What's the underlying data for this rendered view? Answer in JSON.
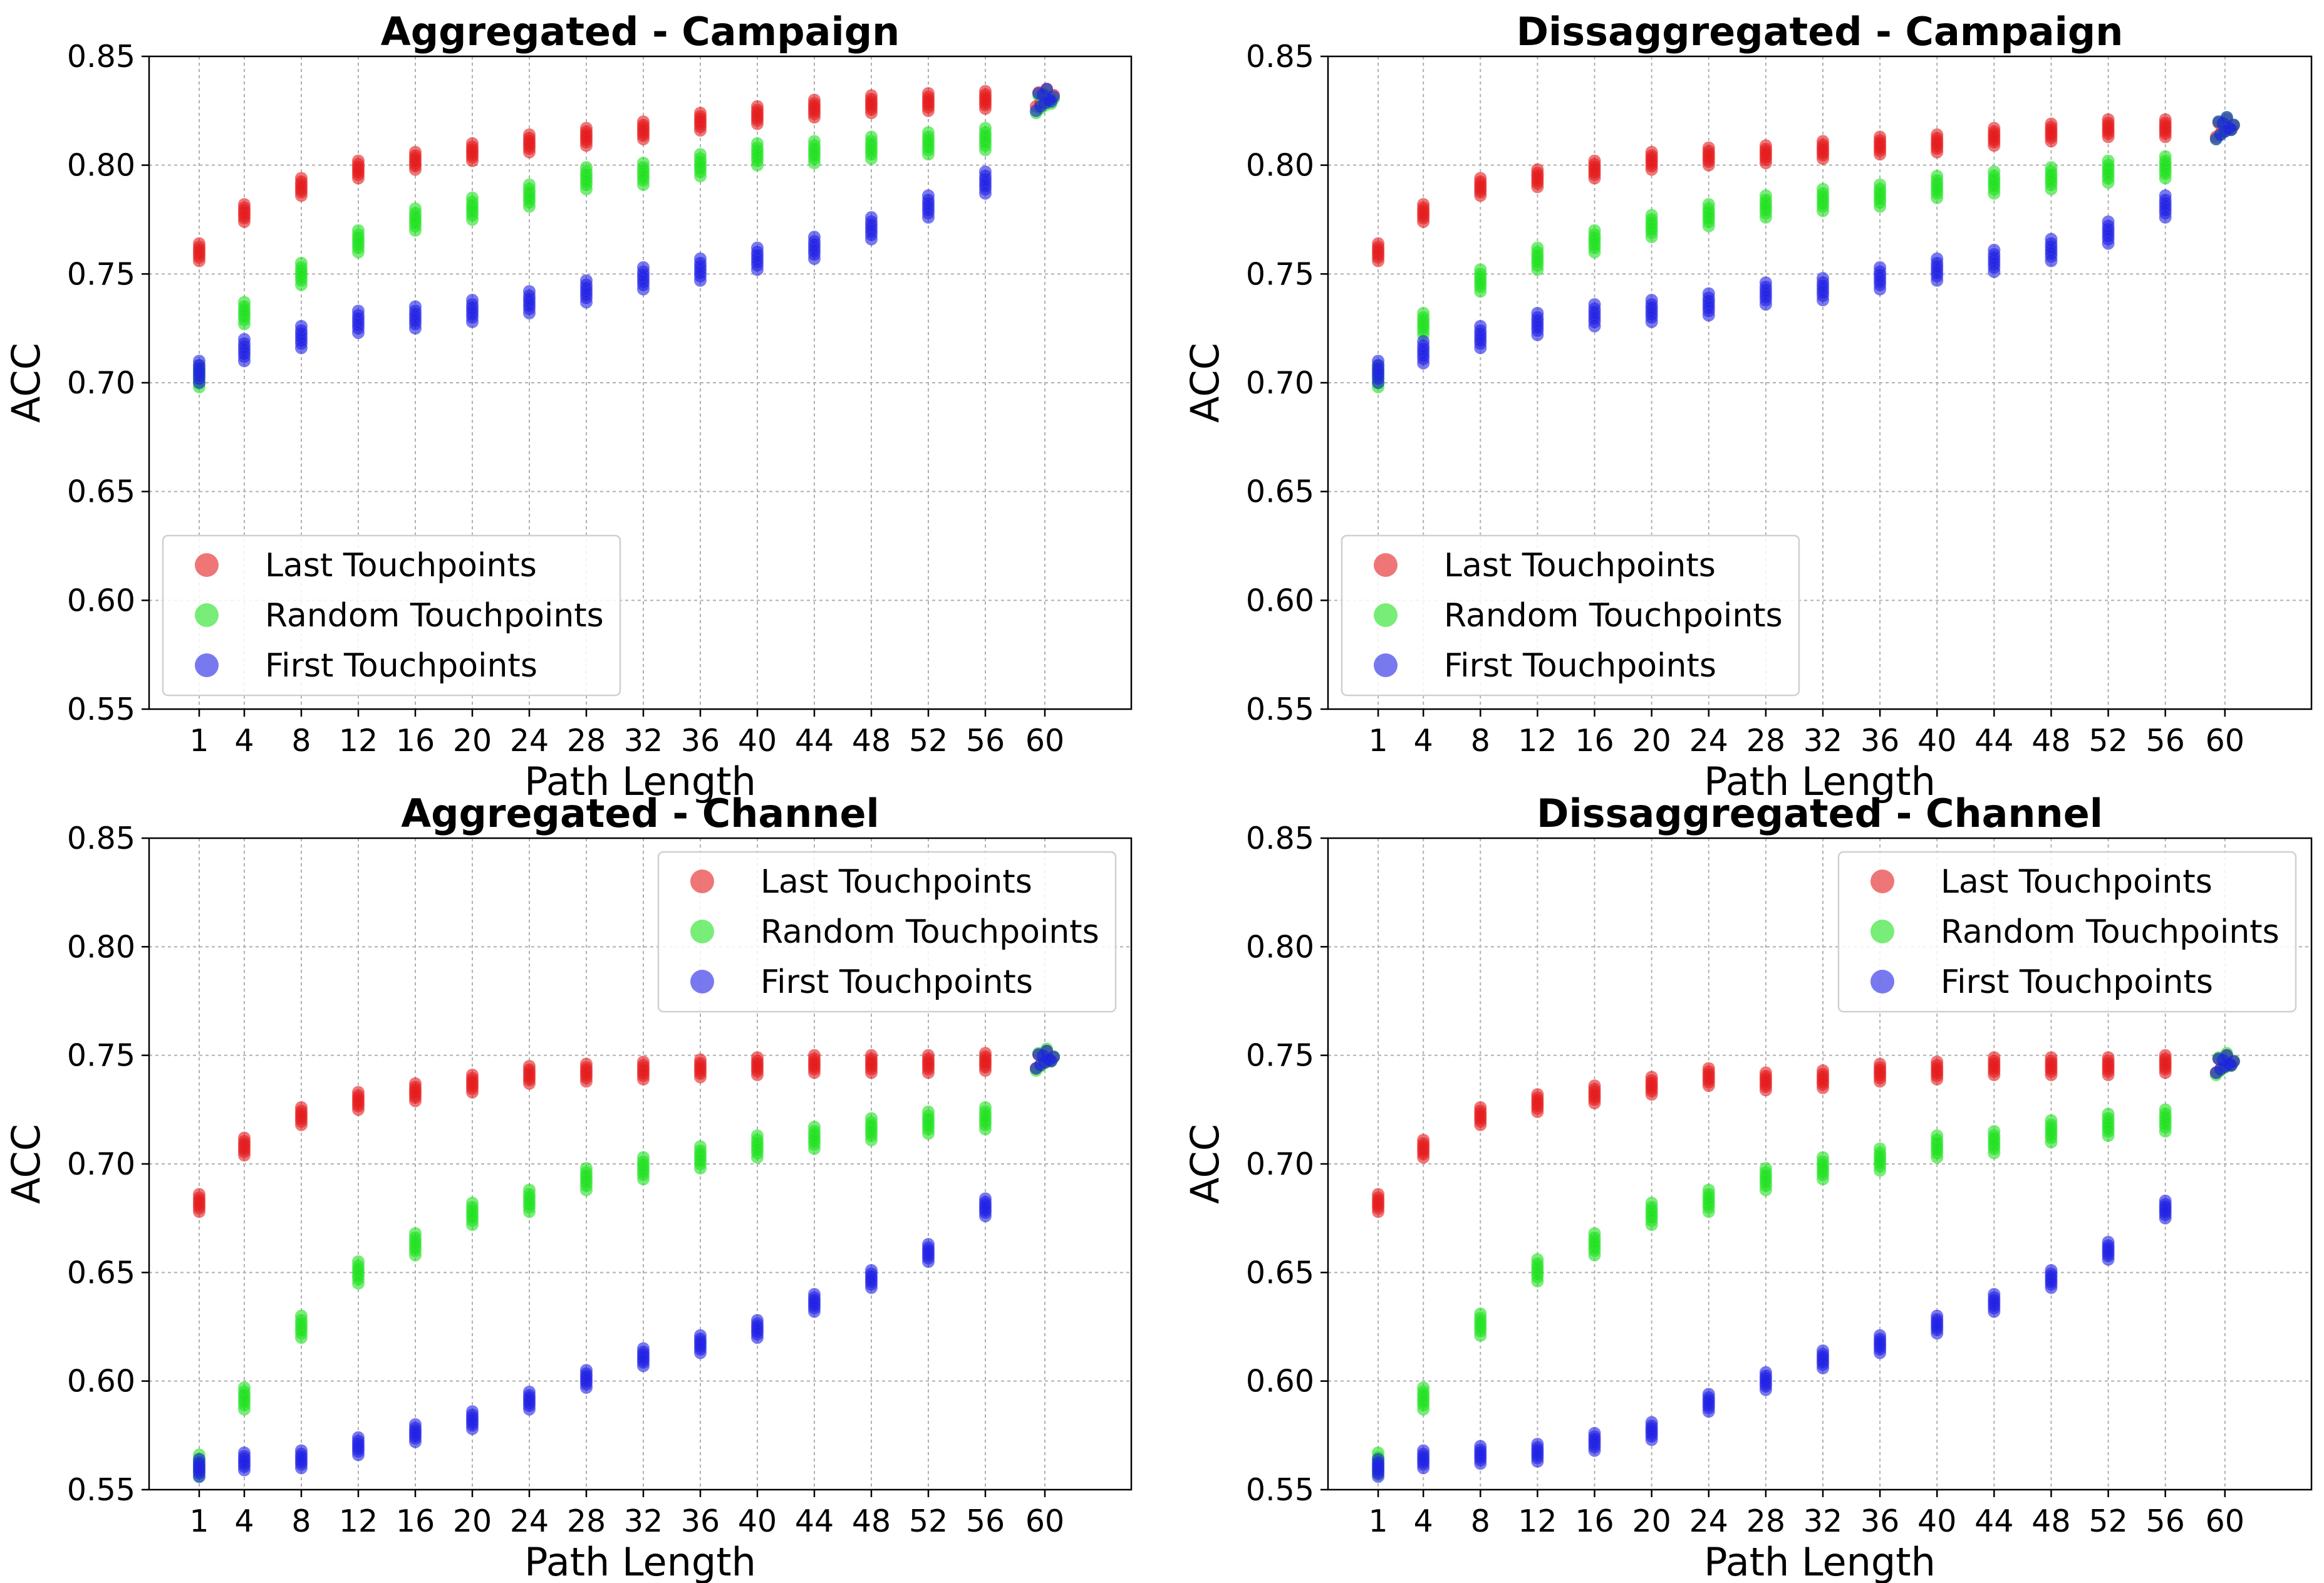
{
  "chart_data": [
    {
      "type": "scatter",
      "title": "Aggregated - Campaign",
      "xlabel": "Path Length",
      "ylabel": "ACC",
      "ylim": [
        0.55,
        0.85
      ],
      "yticks": [
        "0.55",
        "0.60",
        "0.65",
        "0.70",
        "0.75",
        "0.80",
        "0.85"
      ],
      "x": [
        1,
        4,
        8,
        12,
        16,
        20,
        24,
        28,
        32,
        36,
        40,
        44,
        48,
        52,
        56,
        60
      ],
      "grid": true,
      "legend_position": "lower-left",
      "series": [
        {
          "name": "Last Touchpoints",
          "color": "#e41a1c",
          "values": [
            0.76,
            0.778,
            0.79,
            0.798,
            0.802,
            0.806,
            0.81,
            0.813,
            0.816,
            0.82,
            0.823,
            0.826,
            0.828,
            0.829,
            0.83,
            0.831
          ],
          "spread": 0.004
        },
        {
          "name": "Random Touchpoints",
          "color": "#1ee11e",
          "values": [
            0.703,
            0.732,
            0.75,
            0.765,
            0.775,
            0.78,
            0.786,
            0.794,
            0.796,
            0.8,
            0.805,
            0.806,
            0.808,
            0.81,
            0.812,
            0.829
          ],
          "spread": 0.005
        },
        {
          "name": "First Touchpoints",
          "color": "#1f1fe5",
          "values": [
            0.705,
            0.715,
            0.721,
            0.728,
            0.73,
            0.733,
            0.737,
            0.742,
            0.748,
            0.752,
            0.757,
            0.762,
            0.771,
            0.781,
            0.792,
            0.83
          ],
          "spread": 0.005
        }
      ]
    },
    {
      "type": "scatter",
      "title": "Dissaggregated - Campaign",
      "xlabel": "Path Length",
      "ylabel": "ACC",
      "ylim": [
        0.55,
        0.85
      ],
      "yticks": [
        "0.55",
        "0.60",
        "0.65",
        "0.70",
        "0.75",
        "0.80",
        "0.85"
      ],
      "x": [
        1,
        4,
        8,
        12,
        16,
        20,
        24,
        28,
        32,
        36,
        40,
        44,
        48,
        52,
        56,
        60
      ],
      "grid": true,
      "legend_position": "lower-left",
      "series": [
        {
          "name": "Last Touchpoints",
          "color": "#e41a1c",
          "values": [
            0.76,
            0.778,
            0.79,
            0.794,
            0.798,
            0.802,
            0.804,
            0.805,
            0.807,
            0.809,
            0.81,
            0.813,
            0.815,
            0.817,
            0.817,
            0.817
          ],
          "spread": 0.004
        },
        {
          "name": "Random Touchpoints",
          "color": "#1ee11e",
          "values": [
            0.703,
            0.727,
            0.747,
            0.757,
            0.765,
            0.772,
            0.777,
            0.781,
            0.784,
            0.786,
            0.79,
            0.792,
            0.794,
            0.797,
            0.799,
            0.817
          ],
          "spread": 0.005
        },
        {
          "name": "First Touchpoints",
          "color": "#1f1fe5",
          "values": [
            0.705,
            0.714,
            0.721,
            0.727,
            0.731,
            0.733,
            0.736,
            0.741,
            0.743,
            0.748,
            0.752,
            0.756,
            0.761,
            0.769,
            0.781,
            0.817
          ],
          "spread": 0.005
        }
      ]
    },
    {
      "type": "scatter",
      "title": "Aggregated - Channel",
      "xlabel": "Path Length",
      "ylabel": "ACC",
      "ylim": [
        0.55,
        0.85
      ],
      "yticks": [
        "0.55",
        "0.60",
        "0.65",
        "0.70",
        "0.75",
        "0.80",
        "0.85"
      ],
      "x": [
        1,
        4,
        8,
        12,
        16,
        20,
        24,
        28,
        32,
        36,
        40,
        44,
        48,
        52,
        56,
        60
      ],
      "grid": true,
      "legend_position": "upper-right",
      "series": [
        {
          "name": "Last Touchpoints",
          "color": "#e41a1c",
          "values": [
            0.682,
            0.708,
            0.722,
            0.729,
            0.733,
            0.737,
            0.741,
            0.742,
            0.743,
            0.744,
            0.745,
            0.746,
            0.746,
            0.746,
            0.747,
            0.748
          ],
          "spread": 0.004
        },
        {
          "name": "Random Touchpoints",
          "color": "#1ee11e",
          "values": [
            0.561,
            0.592,
            0.625,
            0.65,
            0.663,
            0.677,
            0.683,
            0.693,
            0.698,
            0.703,
            0.708,
            0.712,
            0.716,
            0.719,
            0.721,
            0.748
          ],
          "spread": 0.005
        },
        {
          "name": "First Touchpoints",
          "color": "#1f1fe5",
          "values": [
            0.56,
            0.563,
            0.564,
            0.57,
            0.576,
            0.582,
            0.591,
            0.601,
            0.611,
            0.617,
            0.624,
            0.636,
            0.647,
            0.659,
            0.68,
            0.748
          ],
          "spread": 0.004
        }
      ]
    },
    {
      "type": "scatter",
      "title": "Dissaggregated - Channel",
      "xlabel": "Path Length",
      "ylabel": "ACC",
      "ylim": [
        0.55,
        0.85
      ],
      "yticks": [
        "0.55",
        "0.60",
        "0.65",
        "0.70",
        "0.75",
        "0.80",
        "0.85"
      ],
      "x": [
        1,
        4,
        8,
        12,
        16,
        20,
        24,
        28,
        32,
        36,
        40,
        44,
        48,
        52,
        56,
        60
      ],
      "grid": true,
      "legend_position": "upper-right",
      "series": [
        {
          "name": "Last Touchpoints",
          "color": "#e41a1c",
          "values": [
            0.682,
            0.707,
            0.722,
            0.728,
            0.732,
            0.736,
            0.74,
            0.738,
            0.739,
            0.742,
            0.743,
            0.745,
            0.745,
            0.745,
            0.746,
            0.746
          ],
          "spread": 0.004
        },
        {
          "name": "Random Touchpoints",
          "color": "#1ee11e",
          "values": [
            0.562,
            0.592,
            0.626,
            0.651,
            0.663,
            0.677,
            0.683,
            0.693,
            0.698,
            0.702,
            0.708,
            0.71,
            0.715,
            0.718,
            0.72,
            0.746
          ],
          "spread": 0.005
        },
        {
          "name": "First Touchpoints",
          "color": "#1f1fe5",
          "values": [
            0.56,
            0.564,
            0.566,
            0.567,
            0.572,
            0.577,
            0.59,
            0.6,
            0.61,
            0.617,
            0.626,
            0.636,
            0.647,
            0.66,
            0.679,
            0.746
          ],
          "spread": 0.004
        }
      ]
    }
  ]
}
